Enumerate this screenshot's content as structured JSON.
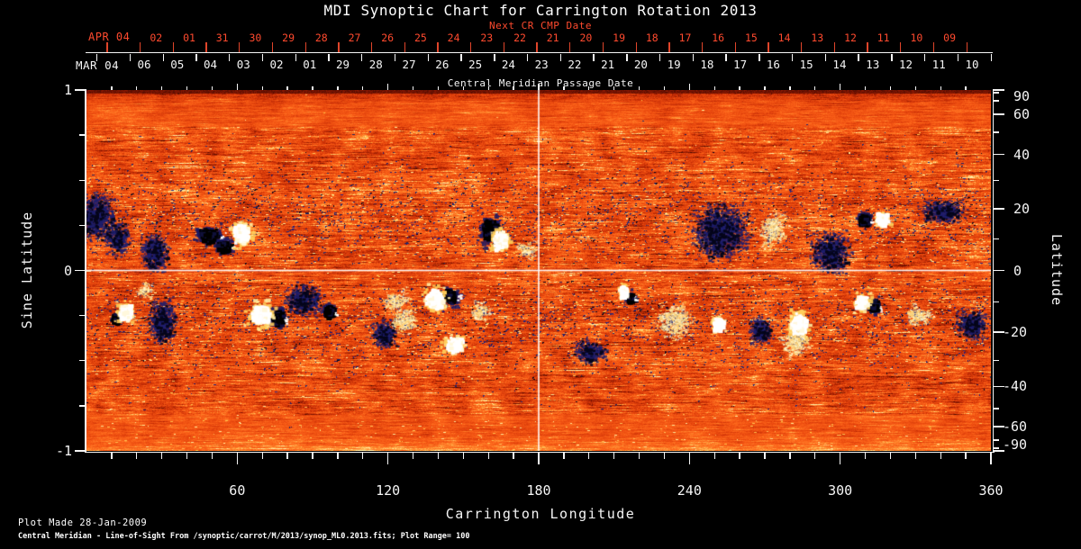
{
  "chart": {
    "title": "MDI Synoptic Chart for Carrington Rotation 2013"
  },
  "axes": {
    "top_red": {
      "title": "Next CR CMP Date",
      "month_label": "APR 04",
      "day_labels": [
        "02",
        "01",
        "31",
        "30",
        "29",
        "28",
        "27",
        "26",
        "25",
        "24",
        "23",
        "22",
        "21",
        "20",
        "19",
        "18",
        "17",
        "16",
        "15",
        "14",
        "13",
        "12",
        "11",
        "10",
        "09"
      ],
      "tick_count": 27,
      "color": "#ff4a2e"
    },
    "top_white": {
      "title": "Central Meridian Passage Date",
      "month_label": "MAR 04",
      "day_labels": [
        "06",
        "05",
        "04",
        "03",
        "02",
        "01",
        "29",
        "28",
        "27",
        "26",
        "25",
        "24",
        "23",
        "22",
        "21",
        "20",
        "19",
        "18",
        "17",
        "16",
        "15",
        "14",
        "13",
        "12",
        "11",
        "10"
      ],
      "tick_count": 28
    },
    "left": {
      "title": "Sine Latitude",
      "major_labels": [
        "1",
        "0",
        "-1"
      ],
      "major_values": [
        1,
        0,
        -1
      ],
      "minor_values": [
        0.75,
        0.5,
        0.25,
        -0.25,
        -0.5,
        -0.75
      ]
    },
    "right": {
      "title": "Latitude",
      "labeled_degrees": [
        90,
        60,
        40,
        20,
        0,
        -20,
        -40,
        -60,
        -90
      ],
      "minor_degrees": [
        80,
        70,
        50,
        30,
        10,
        -10,
        -30,
        -50,
        -70,
        -80
      ]
    },
    "bottom": {
      "title": "Carrington Longitude",
      "major_degrees": [
        60,
        120,
        180,
        240,
        300,
        360
      ],
      "minor_step_degrees": 10,
      "range_degrees": [
        0,
        360
      ]
    }
  },
  "footer": {
    "line1": "Plot Made 28-Jan-2009",
    "line2": "Central Meridian - Line-of-Sight From /synoptic/carrot/M/2013/synop_ML0.2013.fits; Plot Range=  100"
  },
  "chart_data": {
    "type": "heatmap",
    "title": "MDI Synoptic Chart for Carrington Rotation 2013",
    "description": "Full-rotation line-of-sight solar magnetogram map. X axis: Carrington longitude 0-360 deg; Y axis: sine latitude -1 to 1. Background quiet-sun field rendered as orange-red noise with horizontal streaks; strong positive field shown white/yellow, strong negative field shown black/navy. White crosshair lines mark longitude 180 and latitude 0. Data plot range +/-100 gauss.",
    "x_range_degrees": [
      0,
      360
    ],
    "y_range_sine_latitude": [
      -1,
      1
    ],
    "crosshair": {
      "longitude_deg": 180,
      "sine_latitude": 0
    },
    "palette": {
      "background": "#000000",
      "quiet_sun_mid": "#e94810",
      "quiet_sun_dark": "#9c2202",
      "quiet_sun_bright": "#ff8c30",
      "positive_core": "#ffffff",
      "positive_fringe": "#ffcd5a",
      "negative_core": "#000000",
      "negative_fringe": "#1e1e6e",
      "crosshair": "#ffffff"
    },
    "active_regions": [
      {
        "type": "navy-speckle",
        "lon": 4,
        "sin_lat": 0.3,
        "rx_deg": 9,
        "ry_sin": 0.16
      },
      {
        "type": "navy-speckle",
        "lon": 12,
        "sin_lat": 0.18,
        "rx_deg": 6,
        "ry_sin": 0.12
      },
      {
        "type": "navy-speckle",
        "lon": 27,
        "sin_lat": 0.1,
        "rx_deg": 7,
        "ry_sin": 0.14
      },
      {
        "type": "navy-speckle",
        "lon": 30,
        "sin_lat": -0.28,
        "rx_deg": 7,
        "ry_sin": 0.16
      },
      {
        "type": "navy-speckle",
        "lon": 86,
        "sin_lat": -0.16,
        "rx_deg": 9,
        "ry_sin": 0.11
      },
      {
        "type": "navy-speckle",
        "lon": 118,
        "sin_lat": -0.35,
        "rx_deg": 6,
        "ry_sin": 0.1
      },
      {
        "type": "navy-speckle",
        "lon": 252,
        "sin_lat": 0.22,
        "rx_deg": 14,
        "ry_sin": 0.19
      },
      {
        "type": "navy-speckle",
        "lon": 296,
        "sin_lat": 0.1,
        "rx_deg": 10,
        "ry_sin": 0.14
      },
      {
        "type": "navy-speckle",
        "lon": 341,
        "sin_lat": 0.33,
        "rx_deg": 11,
        "ry_sin": 0.08
      },
      {
        "type": "navy-speckle",
        "lon": 352,
        "sin_lat": -0.3,
        "rx_deg": 8,
        "ry_sin": 0.1
      },
      {
        "type": "navy-speckle",
        "lon": 268,
        "sin_lat": -0.33,
        "rx_deg": 6,
        "ry_sin": 0.09
      },
      {
        "type": "navy-speckle",
        "lon": 200,
        "sin_lat": -0.45,
        "rx_deg": 8,
        "ry_sin": 0.08
      },
      {
        "type": "black-core",
        "lon": 48,
        "sin_lat": 0.2,
        "rx_deg": 6,
        "ry_sin": 0.055
      },
      {
        "type": "black-core",
        "lon": 54,
        "sin_lat": 0.14,
        "rx_deg": 4,
        "ry_sin": 0.05
      },
      {
        "type": "black-core",
        "lon": 160,
        "sin_lat": 0.23,
        "rx_deg": 4.5,
        "ry_sin": 0.085
      },
      {
        "type": "black-core",
        "lon": 309,
        "sin_lat": 0.285,
        "rx_deg": 3.2,
        "ry_sin": 0.05
      },
      {
        "type": "black-core",
        "lon": 75.5,
        "sin_lat": -0.255,
        "rx_deg": 3.5,
        "ry_sin": 0.06
      },
      {
        "type": "black-core",
        "lon": 144,
        "sin_lat": -0.135,
        "rx_deg": 4,
        "ry_sin": 0.055
      },
      {
        "type": "black-core",
        "lon": 216,
        "sin_lat": -0.145,
        "rx_deg": 2.2,
        "ry_sin": 0.04
      },
      {
        "type": "black-core",
        "lon": 313,
        "sin_lat": -0.19,
        "rx_deg": 2.8,
        "ry_sin": 0.05
      },
      {
        "type": "black-core",
        "lon": 11,
        "sin_lat": -0.26,
        "rx_deg": 2.2,
        "ry_sin": 0.04
      },
      {
        "type": "black-core",
        "lon": 96,
        "sin_lat": -0.22,
        "rx_deg": 3,
        "ry_sin": 0.05
      },
      {
        "type": "white-core",
        "lon": 61,
        "sin_lat": 0.21,
        "rx_deg": 4.5,
        "ry_sin": 0.075
      },
      {
        "type": "white-core",
        "lon": 164,
        "sin_lat": 0.175,
        "rx_deg": 4,
        "ry_sin": 0.07
      },
      {
        "type": "white-core",
        "lon": 316,
        "sin_lat": 0.29,
        "rx_deg": 3.5,
        "ry_sin": 0.05
      },
      {
        "type": "white-core",
        "lon": 15,
        "sin_lat": -0.225,
        "rx_deg": 3.8,
        "ry_sin": 0.06
      },
      {
        "type": "white-core",
        "lon": 69,
        "sin_lat": -0.24,
        "rx_deg": 5.5,
        "ry_sin": 0.075
      },
      {
        "type": "white-core",
        "lon": 138,
        "sin_lat": -0.15,
        "rx_deg": 4.8,
        "ry_sin": 0.075
      },
      {
        "type": "white-core",
        "lon": 146,
        "sin_lat": -0.405,
        "rx_deg": 4.5,
        "ry_sin": 0.055
      },
      {
        "type": "white-core",
        "lon": 251,
        "sin_lat": -0.29,
        "rx_deg": 3,
        "ry_sin": 0.05
      },
      {
        "type": "white-core",
        "lon": 283,
        "sin_lat": -0.3,
        "rx_deg": 4.5,
        "ry_sin": 0.09
      },
      {
        "type": "white-core",
        "lon": 308,
        "sin_lat": -0.17,
        "rx_deg": 3.5,
        "ry_sin": 0.055
      },
      {
        "type": "white-core",
        "lon": 213,
        "sin_lat": -0.11,
        "rx_deg": 2.4,
        "ry_sin": 0.045
      },
      {
        "type": "plage",
        "lon": 272,
        "sin_lat": 0.22,
        "rx_deg": 5,
        "ry_sin": 0.12
      },
      {
        "type": "plage",
        "lon": 125,
        "sin_lat": -0.28,
        "rx_deg": 5,
        "ry_sin": 0.08
      },
      {
        "type": "plage",
        "lon": 156,
        "sin_lat": -0.225,
        "rx_deg": 4,
        "ry_sin": 0.07
      },
      {
        "type": "plage",
        "lon": 233,
        "sin_lat": -0.28,
        "rx_deg": 7,
        "ry_sin": 0.12
      },
      {
        "type": "plage",
        "lon": 281,
        "sin_lat": -0.4,
        "rx_deg": 6,
        "ry_sin": 0.08
      },
      {
        "type": "plage",
        "lon": 122,
        "sin_lat": -0.17,
        "rx_deg": 5,
        "ry_sin": 0.06
      },
      {
        "type": "plage",
        "lon": 174,
        "sin_lat": 0.12,
        "rx_deg": 4,
        "ry_sin": 0.06
      },
      {
        "type": "plage",
        "lon": 330,
        "sin_lat": -0.25,
        "rx_deg": 5,
        "ry_sin": 0.07
      },
      {
        "type": "plage",
        "lon": 22,
        "sin_lat": -0.1,
        "rx_deg": 3,
        "ry_sin": 0.05
      }
    ]
  }
}
